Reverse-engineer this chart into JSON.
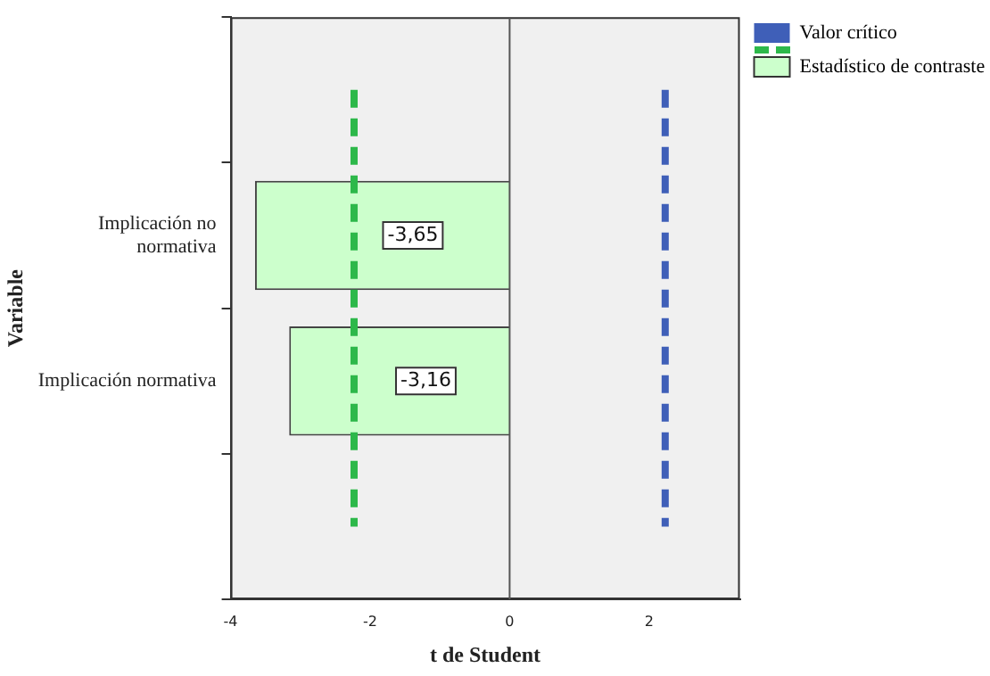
{
  "chart_data": {
    "type": "bar",
    "orientation": "horizontal",
    "xlabel": "t de Student",
    "ylabel": "Variable",
    "categories": [
      null,
      "Implicación no normativa",
      "Implicación normativa",
      null
    ],
    "series": [
      {
        "name": "Estadístico de contraste",
        "color": "#ccffcc",
        "values": [
          null,
          -3.65,
          -3.16,
          null
        ],
        "value_labels": [
          null,
          "-3,65",
          "-3,16",
          null
        ]
      }
    ],
    "xlim": [
      -4,
      3.3
    ],
    "xticks": [
      -4,
      -2,
      0,
      2
    ],
    "grid": false,
    "legend": "right",
    "ref_lines": [
      {
        "axis": "x",
        "value": 0,
        "color": "#555555",
        "line_style": "solid"
      },
      {
        "axis": "x",
        "value": 2.23,
        "label": "Valor crítico",
        "color": "#3f5fb8",
        "line_style": "dashed"
      },
      {
        "axis": "x",
        "value": -2.23,
        "color": "#2db84a",
        "line_style": "dashed"
      }
    ]
  }
}
